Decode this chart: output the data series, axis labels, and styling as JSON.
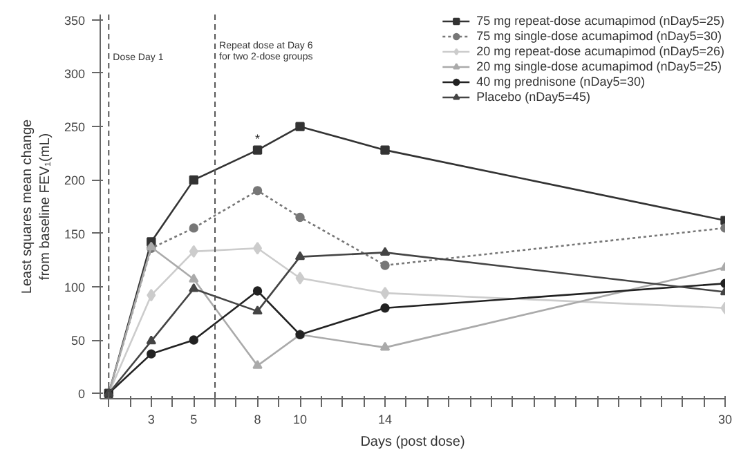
{
  "chart_data": {
    "type": "line",
    "xlabel": "Days (post dose)",
    "ylabel": "Least squares mean change\nfrom baseline FEV₁(mL)",
    "x": [
      1,
      3,
      5,
      8,
      10,
      14,
      30
    ],
    "series": [
      {
        "name": "75 mg repeat-dose acumapimod (nDay5=25)",
        "color": "#333333",
        "marker": "square",
        "values": [
          0,
          142,
          200,
          228,
          250,
          228,
          162
        ]
      },
      {
        "name": "75 mg single-dose acumapimod (nDay5=30)",
        "color": "#777777",
        "marker": "circle",
        "line_style": "dotted",
        "values": [
          0,
          136,
          155,
          190,
          165,
          120,
          155
        ]
      },
      {
        "name": "20 mg repeat-dose acumapimod (nDay5=26)",
        "color": "#cccccc",
        "marker": "diamond",
        "values": [
          0,
          92,
          133,
          136,
          108,
          94,
          80
        ]
      },
      {
        "name": "20 mg single-dose acumapimod (nDay5=25)",
        "color": "#aaaaaa",
        "marker": "triangle",
        "values": [
          0,
          137,
          107,
          26,
          55,
          43,
          118
        ]
      },
      {
        "name": "40 mg prednisone (nDay5=30)",
        "color": "#222222",
        "marker": "circle",
        "values": [
          0,
          37,
          50,
          96,
          55,
          80,
          103
        ]
      },
      {
        "name": "Placebo (nDay5=45)",
        "color": "#444444",
        "marker": "triangle",
        "values": [
          0,
          49,
          98,
          77,
          128,
          132,
          95
        ]
      }
    ],
    "xlim": [
      0.6,
      30
    ],
    "ylim": [
      -5,
      355
    ],
    "xticks": [
      {
        "value": 1,
        "label": null
      },
      {
        "value": 2,
        "label": null
      },
      3,
      {
        "value": 4,
        "label": null
      },
      5,
      {
        "value": 6,
        "label": null
      },
      {
        "value": 7,
        "label": null
      },
      8,
      {
        "value": 9,
        "label": null
      },
      10,
      {
        "value": 11,
        "label": null
      },
      {
        "value": 12,
        "label": null
      },
      {
        "value": 13,
        "label": null
      },
      14,
      {
        "value": 15,
        "label": null
      },
      {
        "value": 16,
        "label": null
      },
      {
        "value": 17,
        "label": null
      },
      {
        "value": 18,
        "label": null
      },
      {
        "value": 19,
        "label": null
      },
      {
        "value": 20,
        "label": null
      },
      {
        "value": 21,
        "label": null
      },
      {
        "value": 22,
        "label": null
      },
      {
        "value": 23,
        "label": null
      },
      {
        "value": 24,
        "label": null
      },
      {
        "value": 25,
        "label": null
      },
      {
        "value": 26,
        "label": null
      },
      {
        "value": 27,
        "label": null
      },
      {
        "value": 28,
        "label": null
      },
      {
        "value": 29,
        "label": null
      },
      30
    ],
    "yticks": [
      0,
      50,
      100,
      150,
      200,
      250,
      300,
      350
    ],
    "ref_lines": [
      {
        "axis": "x",
        "value": 1,
        "label": "Dose Day 1",
        "line_style": "dashed",
        "color": "#555555"
      },
      {
        "axis": "x",
        "value": 6,
        "label": "Repeat dose at Day 6\nfor two 2-dose groups",
        "line_style": "dashed",
        "color": "#555555"
      }
    ],
    "annotations": [
      {
        "text": "*",
        "x": 8,
        "y": 228
      }
    ],
    "grid": false,
    "legend": "top right"
  }
}
